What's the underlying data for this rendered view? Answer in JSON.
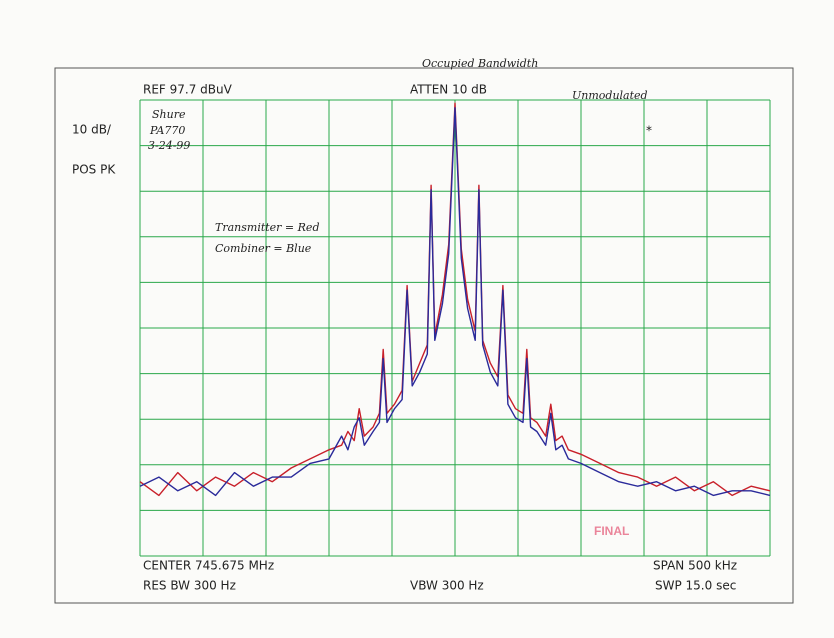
{
  "chart_data": {
    "type": "line",
    "header_note": "Occupied Bandwidth",
    "ref_label": "REF  97.7 dBuV",
    "atten_label": "ATTEN 10 dB",
    "scale_label": "10 dB/",
    "detector_label": "POS PK",
    "center_label": "CENTER 745.675 MHz",
    "span_label": "SPAN 500 kHz",
    "rbw_label": "RES BW 300   Hz",
    "vbw_label": "VBW 300   Hz",
    "sweep_label": "SWP 15.0   sec",
    "notes": [
      "Unmodulated",
      "Shure",
      "PA770",
      "3-24-99",
      "Transmitter = Red",
      "Combiner = Blue",
      "*"
    ],
    "stamp": "FINAL",
    "xlim": [
      -250,
      250
    ],
    "ylim": [
      -2.3,
      97.7
    ],
    "grid": true,
    "x": [
      -250,
      -235,
      -220,
      -205,
      -190,
      -175,
      -160,
      -145,
      -130,
      -115,
      -100,
      -90,
      -85,
      -80,
      -76,
      -72,
      -65,
      -60,
      -57,
      -54,
      -48,
      -42,
      -38,
      -34,
      -28,
      -22,
      -19,
      -16,
      -10,
      -5,
      0,
      5,
      10,
      16,
      19,
      22,
      28,
      34,
      38,
      42,
      48,
      54,
      57,
      60,
      65,
      72,
      76,
      80,
      85,
      90,
      100,
      115,
      130,
      145,
      160,
      175,
      190,
      205,
      220,
      235,
      250
    ],
    "series": [
      {
        "color": "#c8202a",
        "values": [
          14,
          11,
          16,
          12,
          15,
          13,
          16,
          14,
          17,
          19,
          21,
          22,
          25,
          23,
          30,
          24,
          26,
          29,
          43,
          29,
          31,
          34,
          57,
          36,
          40,
          44,
          79,
          46,
          55,
          66,
          97,
          65,
          54,
          47,
          79,
          45,
          40,
          37,
          57,
          33,
          30,
          29,
          43,
          28,
          27,
          24,
          31,
          23,
          24,
          21,
          20,
          18,
          16,
          15,
          13,
          15,
          12,
          14,
          11,
          13,
          12
        ]
      },
      {
        "color": "#2a2a9a",
        "values": [
          13,
          15,
          12,
          14,
          11,
          16,
          13,
          15,
          15,
          18,
          19,
          24,
          21,
          26,
          28,
          22,
          25,
          27,
          41,
          27,
          30,
          32,
          56,
          35,
          38,
          42,
          78,
          45,
          53,
          64,
          96,
          63,
          52,
          45,
          78,
          44,
          38,
          35,
          56,
          31,
          28,
          27,
          41,
          26,
          25,
          22,
          29,
          21,
          22,
          19,
          18,
          16,
          14,
          13,
          14,
          12,
          13,
          11,
          12,
          12,
          11
        ]
      }
    ]
  }
}
